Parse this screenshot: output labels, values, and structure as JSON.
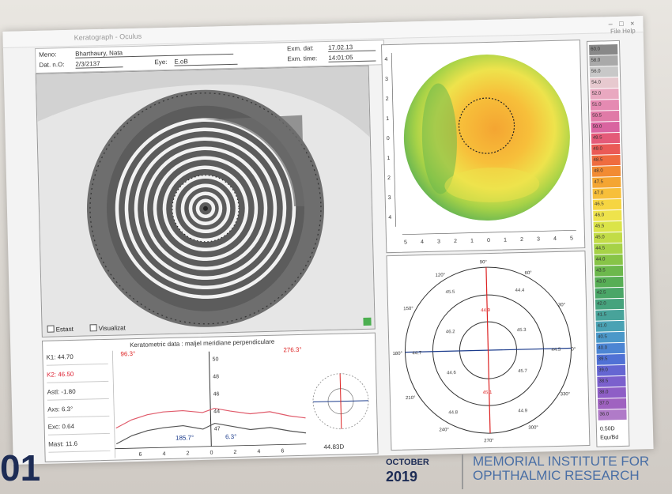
{
  "window": {
    "title": "Keratograph - Oculus",
    "controls": "– □ ×",
    "menu": "File  Help"
  },
  "header": {
    "name_label": "Meno:",
    "name_value": "Bharthaury, Nata",
    "dob_label": "Dat. n.O:",
    "dob_value": "2/3/2137",
    "eye_label": "Eye:",
    "eye_value": "E.oB",
    "exam_date_label": "Exm. dat:",
    "exam_date_value": "17.02.13",
    "exam_time_label": "Exm. time:",
    "exam_time_value": "14:01:05"
  },
  "eye_panel": {
    "checkbox1_label": "Estast",
    "checkbox2_label": "Visualizat"
  },
  "bottom_panel": {
    "title": "Keratometric data : maljel meridiane perpendiculare",
    "k_values": [
      {
        "label": "K1:",
        "value": "44.70",
        "red": false
      },
      {
        "label": "K2:",
        "value": "46.50",
        "red": true
      },
      {
        "label": "Astl:",
        "value": "-1.80",
        "red": false
      },
      {
        "label": "Axs:",
        "value": "6.3°",
        "red": false
      },
      {
        "label": "Exc:",
        "value": "0.64",
        "red": false
      },
      {
        "label": "Mast:",
        "value": "11.6",
        "red": false
      }
    ],
    "graph_axis_labels": [
      "50",
      "48",
      "46",
      "44",
      "47"
    ],
    "x_ticks": [
      "6",
      "4",
      "2",
      "0",
      "2",
      "4",
      "6"
    ],
    "red_label_left": "96.3°",
    "red_label_right": "276.3°",
    "blue_label_left": "185.7°",
    "blue_label_right": "6.3°",
    "mini_polar_caption": "44.83D"
  },
  "topo_map": {
    "y_ticks": [
      "4",
      "3",
      "2",
      "1",
      "0",
      "1",
      "2",
      "3",
      "4"
    ],
    "x_ticks": [
      "5",
      "4",
      "3",
      "2",
      "1",
      "0",
      "1",
      "2",
      "3",
      "4",
      "5"
    ]
  },
  "polar_map": {
    "angle_labels": [
      "90°",
      "120°",
      "150°",
      "180°",
      "210°",
      "240°",
      "270°",
      "300°",
      "330°",
      "0°",
      "30°",
      "60°"
    ],
    "values": [
      "44.9",
      "45.5",
      "46.2",
      "44.7",
      "44.6",
      "44.8",
      "45.1",
      "44.9",
      "45.7",
      "44.5",
      "45.3",
      "44.4"
    ]
  },
  "color_scale": {
    "steps": [
      {
        "v": "60.0",
        "c": "#888888"
      },
      {
        "v": "58.0",
        "c": "#a9a9a9"
      },
      {
        "v": "56.0",
        "c": "#c8c8c8"
      },
      {
        "v": "54.0",
        "c": "#e7c9cf"
      },
      {
        "v": "52.0",
        "c": "#e9a8c0"
      },
      {
        "v": "51.0",
        "c": "#e58ab2"
      },
      {
        "v": "50.5",
        "c": "#e07aa7"
      },
      {
        "v": "50.0",
        "c": "#d964a0"
      },
      {
        "v": "49.5",
        "c": "#e45a78"
      },
      {
        "v": "49.0",
        "c": "#ea5a56"
      },
      {
        "v": "48.5",
        "c": "#ef6c3f"
      },
      {
        "v": "48.0",
        "c": "#f28b33"
      },
      {
        "v": "47.5",
        "c": "#f4a532"
      },
      {
        "v": "47.0",
        "c": "#f7bf3a"
      },
      {
        "v": "46.5",
        "c": "#f6d542"
      },
      {
        "v": "46.0",
        "c": "#eee34c"
      },
      {
        "v": "45.5",
        "c": "#dbe448"
      },
      {
        "v": "45.0",
        "c": "#c2dc47"
      },
      {
        "v": "44.5",
        "c": "#a6d247"
      },
      {
        "v": "44.0",
        "c": "#87c447"
      },
      {
        "v": "43.5",
        "c": "#6cb84c"
      },
      {
        "v": "43.0",
        "c": "#57ae55"
      },
      {
        "v": "42.5",
        "c": "#4aa667"
      },
      {
        "v": "42.0",
        "c": "#46a37d"
      },
      {
        "v": "41.5",
        "c": "#48a39a"
      },
      {
        "v": "41.0",
        "c": "#4aa2b4"
      },
      {
        "v": "40.5",
        "c": "#4b98c9"
      },
      {
        "v": "40.0",
        "c": "#4c85d3"
      },
      {
        "v": "39.5",
        "c": "#5071d5"
      },
      {
        "v": "39.0",
        "c": "#6566d2"
      },
      {
        "v": "38.5",
        "c": "#7b60cd"
      },
      {
        "v": "38.0",
        "c": "#8e5ec6"
      },
      {
        "v": "37.0",
        "c": "#9f62c0"
      },
      {
        "v": "36.0",
        "c": "#b07bc8"
      }
    ],
    "unit_top": "0.50D",
    "unit_bottom": "Equ/Bd"
  },
  "footer": {
    "event_number": "01",
    "month": "OCTOBER",
    "year": "2019",
    "institute_line1": "MEMORIAL INSTITUTE FOR",
    "institute_line2": "OPHTHALMIC RESEARCH"
  }
}
